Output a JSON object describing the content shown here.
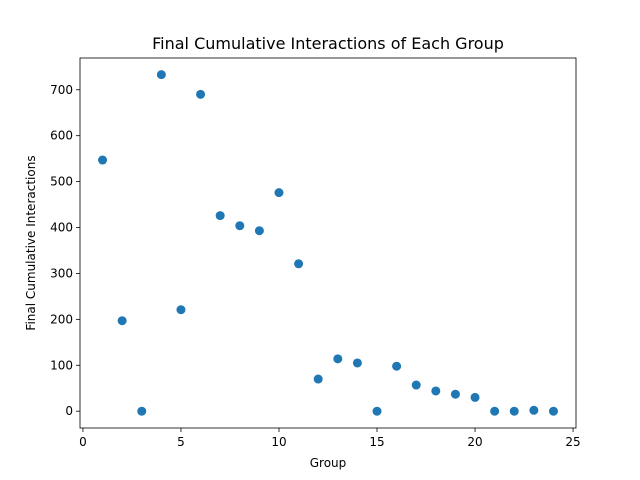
{
  "chart_data": {
    "type": "scatter",
    "title": "Final Cumulative Interactions of Each Group",
    "xlabel": "Group",
    "ylabel": "Final Cumulative Interactions",
    "xlim": [
      -0.15,
      25.15
    ],
    "ylim": [
      -36.6,
      769.2
    ],
    "xticks": [
      0,
      5,
      10,
      15,
      20,
      25
    ],
    "yticks": [
      0,
      100,
      200,
      300,
      400,
      500,
      600,
      700
    ],
    "grid": false,
    "marker_color": "#1f77b4",
    "series": [
      {
        "x": [
          1,
          2,
          3,
          4,
          5,
          6,
          7,
          8,
          9,
          10,
          11,
          12,
          13,
          14,
          15,
          16,
          17,
          18,
          19,
          20,
          21,
          22,
          23,
          24
        ],
        "y": [
          547,
          197,
          0,
          733,
          221,
          690,
          426,
          404,
          393,
          476,
          321,
          70,
          114,
          105,
          0,
          98,
          57,
          44,
          37,
          30,
          0,
          0,
          2,
          0
        ]
      }
    ]
  }
}
